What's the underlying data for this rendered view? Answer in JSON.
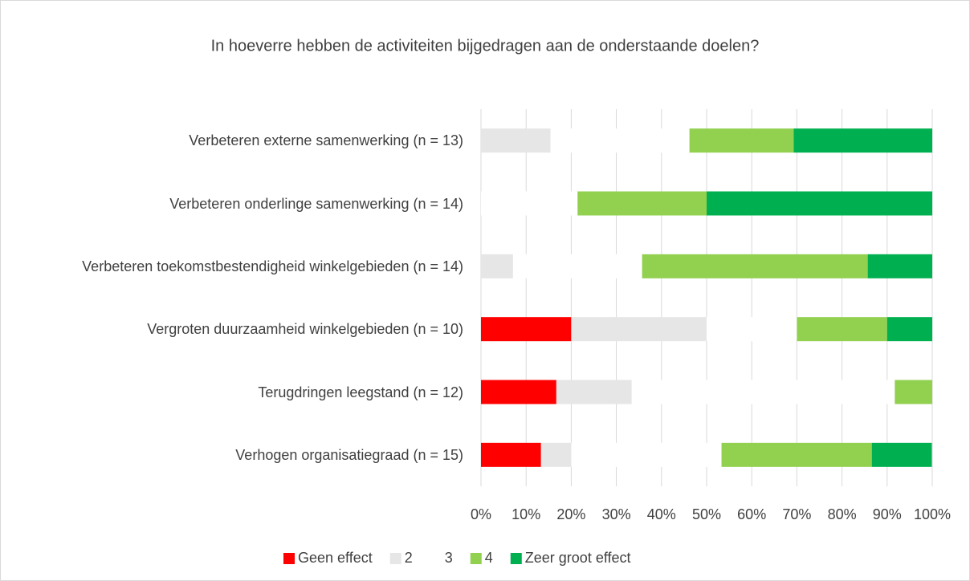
{
  "chart_data": {
    "type": "stacked_barh",
    "title": "In hoeverre hebben de activiteiten bijgedragen aan de onderstaande doelen?",
    "categories": [
      "Verbeteren externe samenwerking (n = 13)",
      "Verbeteren onderlinge samenwerking (n = 14)",
      "Verbeteren toekomstbestendigheid winkelgebieden (n = 14)",
      "Vergroten duurzaamheid winkelgebieden (n = 10)",
      "Terugdringen leegstand (n = 12)",
      "Verhogen organisatiegraad (n = 15)"
    ],
    "series": [
      {
        "name": "Geen effect",
        "color": "#ff0000",
        "values": [
          0,
          0,
          0,
          20,
          16.7,
          13.3
        ]
      },
      {
        "name": "2",
        "color": "#e7e6e6",
        "values": [
          15.4,
          0,
          7.1,
          30,
          16.7,
          6.7
        ]
      },
      {
        "name": "3",
        "color": "#ffffff",
        "values": [
          30.8,
          21.4,
          28.6,
          20,
          58.3,
          33.3
        ]
      },
      {
        "name": "4",
        "color": "#92d050",
        "values": [
          23.1,
          28.6,
          50,
          20,
          8.3,
          33.3
        ]
      },
      {
        "name": "Zeer groot effect",
        "color": "#00b050",
        "values": [
          30.7,
          50,
          14.3,
          10,
          0,
          13.3
        ]
      }
    ],
    "xlim": [
      0,
      100
    ],
    "xticks": [
      {
        "value": 0,
        "label": "0%"
      },
      {
        "value": 10,
        "label": "10%"
      },
      {
        "value": 20,
        "label": "20%"
      },
      {
        "value": 30,
        "label": "30%"
      },
      {
        "value": 40,
        "label": "40%"
      },
      {
        "value": 50,
        "label": "50%"
      },
      {
        "value": 60,
        "label": "60%"
      },
      {
        "value": 70,
        "label": "70%"
      },
      {
        "value": 80,
        "label": "80%"
      },
      {
        "value": 90,
        "label": "90%"
      },
      {
        "value": 100,
        "label": "100%"
      }
    ],
    "grid": true,
    "legend": "bottom"
  }
}
